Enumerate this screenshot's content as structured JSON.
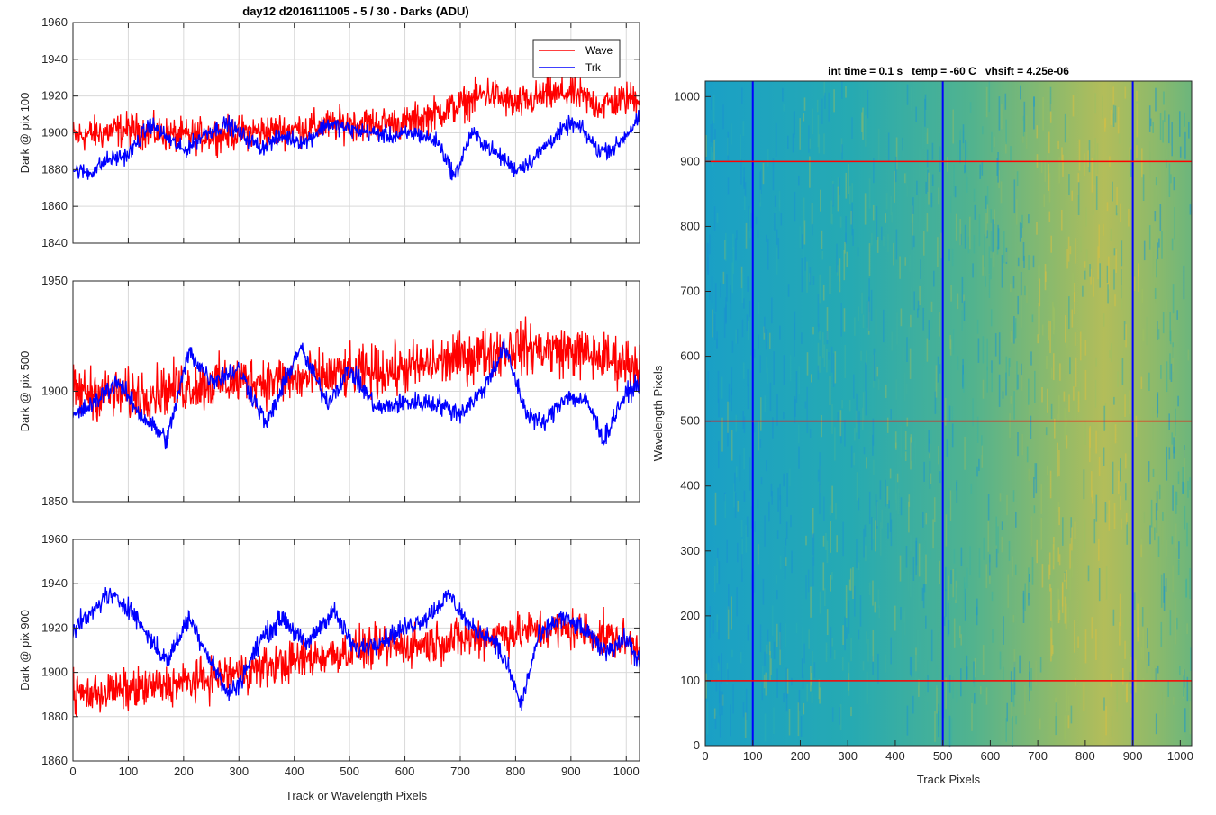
{
  "figure_title": "day12 d2016111005 - 5 / 30 - Darks (ADU)",
  "colors": {
    "wave": "#ff0000",
    "trk": "#0000ff",
    "grid": "#d9d9d9",
    "axes": "#262626"
  },
  "chart_data": [
    {
      "type": "line",
      "ylabel": "Dark @ pix 100",
      "xlim": [
        0,
        1024
      ],
      "ylim": [
        1840,
        1960
      ],
      "yticks": [
        1840,
        1860,
        1880,
        1900,
        1920,
        1940,
        1960
      ],
      "xticks": [
        0,
        100,
        200,
        300,
        400,
        500,
        600,
        700,
        800,
        900,
        1000
      ],
      "show_xticklabels": false,
      "grid": true,
      "legend": {
        "placement": "top-right",
        "entries": [
          "Wave",
          "Trk"
        ]
      },
      "series": [
        {
          "name": "Wave",
          "color": "#ff0000",
          "mean": 1900,
          "noise": 8,
          "points": [
            [
              0,
              1898
            ],
            [
              100,
              1902
            ],
            [
              200,
              1898
            ],
            [
              300,
              1900
            ],
            [
              400,
              1902
            ],
            [
              500,
              1905
            ],
            [
              600,
              1905
            ],
            [
              650,
              1910
            ],
            [
              700,
              1915
            ],
            [
              750,
              1922
            ],
            [
              800,
              1915
            ],
            [
              850,
              1920
            ],
            [
              900,
              1922
            ],
            [
              950,
              1915
            ],
            [
              1024,
              1920
            ]
          ]
        },
        {
          "name": "Trk",
          "color": "#0000ff",
          "mean": 1890,
          "noise": 4,
          "points": [
            [
              0,
              1880
            ],
            [
              30,
              1878
            ],
            [
              60,
              1885
            ],
            [
              100,
              1888
            ],
            [
              140,
              1905
            ],
            [
              160,
              1900
            ],
            [
              200,
              1890
            ],
            [
              240,
              1900
            ],
            [
              280,
              1905
            ],
            [
              300,
              1900
            ],
            [
              340,
              1892
            ],
            [
              380,
              1898
            ],
            [
              420,
              1895
            ],
            [
              460,
              1905
            ],
            [
              500,
              1902
            ],
            [
              540,
              1900
            ],
            [
              580,
              1898
            ],
            [
              620,
              1900
            ],
            [
              660,
              1895
            ],
            [
              690,
              1876
            ],
            [
              720,
              1900
            ],
            [
              760,
              1890
            ],
            [
              800,
              1880
            ],
            [
              830,
              1885
            ],
            [
              860,
              1895
            ],
            [
              900,
              1905
            ],
            [
              920,
              1902
            ],
            [
              950,
              1890
            ],
            [
              980,
              1892
            ],
            [
              1024,
              1908
            ]
          ]
        }
      ]
    },
    {
      "type": "line",
      "ylabel": "Dark @ pix 500",
      "xlim": [
        0,
        1024
      ],
      "ylim": [
        1850,
        1950
      ],
      "yticks": [
        1850,
        1900,
        1950
      ],
      "xticks": [
        0,
        100,
        200,
        300,
        400,
        500,
        600,
        700,
        800,
        900,
        1000
      ],
      "show_xticklabels": false,
      "grid": true,
      "series": [
        {
          "name": "Wave",
          "color": "#ff0000",
          "mean": 1905,
          "noise": 10,
          "points": [
            [
              0,
              1900
            ],
            [
              100,
              1898
            ],
            [
              200,
              1902
            ],
            [
              300,
              1905
            ],
            [
              400,
              1905
            ],
            [
              500,
              1908
            ],
            [
              600,
              1910
            ],
            [
              700,
              1915
            ],
            [
              800,
              1920
            ],
            [
              900,
              1918
            ],
            [
              1024,
              1912
            ]
          ]
        },
        {
          "name": "Trk",
          "color": "#0000ff",
          "mean": 1900,
          "noise": 4,
          "points": [
            [
              0,
              1888
            ],
            [
              40,
              1895
            ],
            [
              80,
              1905
            ],
            [
              120,
              1890
            ],
            [
              170,
              1878
            ],
            [
              210,
              1918
            ],
            [
              250,
              1905
            ],
            [
              300,
              1910
            ],
            [
              350,
              1885
            ],
            [
              410,
              1920
            ],
            [
              460,
              1895
            ],
            [
              500,
              1910
            ],
            [
              550,
              1892
            ],
            [
              600,
              1895
            ],
            [
              650,
              1895
            ],
            [
              700,
              1890
            ],
            [
              740,
              1900
            ],
            [
              780,
              1920
            ],
            [
              820,
              1890
            ],
            [
              850,
              1885
            ],
            [
              890,
              1898
            ],
            [
              930,
              1895
            ],
            [
              960,
              1878
            ],
            [
              990,
              1895
            ],
            [
              1024,
              1905
            ]
          ]
        }
      ]
    },
    {
      "type": "line",
      "ylabel": "Dark @ pix 900",
      "xlabel": "Track or Wavelength Pixels",
      "xlim": [
        0,
        1024
      ],
      "ylim": [
        1860,
        1960
      ],
      "yticks": [
        1860,
        1880,
        1900,
        1920,
        1940,
        1960
      ],
      "xticks": [
        0,
        100,
        200,
        300,
        400,
        500,
        600,
        700,
        800,
        900,
        1000
      ],
      "show_xticklabels": true,
      "grid": true,
      "series": [
        {
          "name": "Wave",
          "color": "#ff0000",
          "mean": 1898,
          "noise": 8,
          "points": [
            [
              0,
              1890
            ],
            [
              100,
              1892
            ],
            [
              200,
              1895
            ],
            [
              300,
              1900
            ],
            [
              400,
              1905
            ],
            [
              500,
              1910
            ],
            [
              600,
              1912
            ],
            [
              700,
              1915
            ],
            [
              800,
              1918
            ],
            [
              900,
              1920
            ],
            [
              1024,
              1912
            ]
          ]
        },
        {
          "name": "Trk",
          "color": "#0000ff",
          "mean": 1915,
          "noise": 4,
          "points": [
            [
              0,
              1920
            ],
            [
              30,
              1925
            ],
            [
              60,
              1935
            ],
            [
              100,
              1930
            ],
            [
              140,
              1915
            ],
            [
              170,
              1905
            ],
            [
              210,
              1925
            ],
            [
              240,
              1910
            ],
            [
              280,
              1890
            ],
            [
              300,
              1895
            ],
            [
              340,
              1915
            ],
            [
              380,
              1925
            ],
            [
              420,
              1912
            ],
            [
              470,
              1928
            ],
            [
              510,
              1910
            ],
            [
              560,
              1915
            ],
            [
              600,
              1920
            ],
            [
              640,
              1925
            ],
            [
              680,
              1935
            ],
            [
              720,
              1920
            ],
            [
              760,
              1915
            ],
            [
              790,
              1900
            ],
            [
              810,
              1885
            ],
            [
              840,
              1915
            ],
            [
              880,
              1925
            ],
            [
              920,
              1920
            ],
            [
              960,
              1910
            ],
            [
              1000,
              1915
            ],
            [
              1024,
              1905
            ]
          ]
        }
      ]
    },
    {
      "type": "heatmap",
      "title": "int time = 0.1 s   temp = -60 C   vhsift = 4.25e-06",
      "xlabel": "Track Pixels",
      "ylabel": "Wavelength Pixels",
      "xlim": [
        0,
        1024
      ],
      "ylim": [
        0,
        1024
      ],
      "xticks": [
        0,
        100,
        200,
        300,
        400,
        500,
        600,
        700,
        800,
        900,
        1000
      ],
      "yticks": [
        0,
        100,
        200,
        300,
        400,
        500,
        600,
        700,
        800,
        900,
        1000
      ],
      "colormap": "parula",
      "vertical_lines": {
        "color": "#0000ff",
        "x": [
          100,
          500,
          900
        ]
      },
      "horizontal_lines": {
        "color": "#ff0000",
        "y": [
          100,
          500,
          900
        ]
      }
    }
  ]
}
